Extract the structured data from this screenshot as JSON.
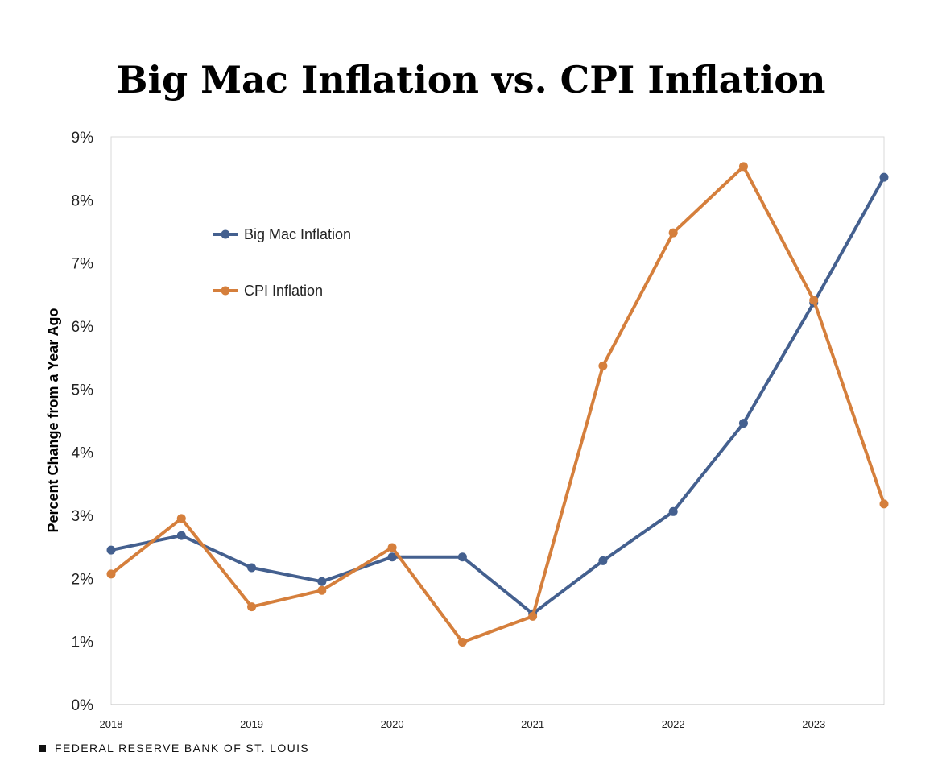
{
  "chart_data": {
    "type": "line",
    "title": "Big Mac Inflation vs. CPI Inflation",
    "ylabel": "Percent Change from a Year Ago",
    "xlabel": "",
    "x": [
      2018,
      2018.5,
      2019,
      2019.5,
      2020,
      2020.5,
      2021,
      2021.5,
      2022,
      2022.5,
      2023,
      2023.5
    ],
    "xticks": [
      "2018",
      "2019",
      "2020",
      "2021",
      "2022",
      "2023"
    ],
    "xtick_values": [
      2018,
      2019,
      2020,
      2021,
      2022,
      2023
    ],
    "xlim": [
      2018,
      2023.5
    ],
    "yticks": [
      "0%",
      "1%",
      "2%",
      "3%",
      "4%",
      "5%",
      "6%",
      "7%",
      "8%",
      "9%"
    ],
    "ylim": [
      0,
      9
    ],
    "grid": "none",
    "legend_position": "upper-left",
    "series": [
      {
        "name": "Big Mac Inflation",
        "color": "#44608f",
        "values": [
          2.45,
          2.68,
          2.17,
          1.95,
          2.34,
          2.34,
          1.44,
          2.28,
          3.06,
          4.46,
          6.37,
          8.36
        ]
      },
      {
        "name": "CPI Inflation",
        "color": "#d57f3c",
        "values": [
          2.07,
          2.95,
          1.55,
          1.81,
          2.49,
          0.99,
          1.4,
          5.37,
          7.48,
          8.53,
          6.41,
          3.18
        ]
      }
    ]
  },
  "source": "FEDERAL RESERVE BANK OF ST. LOUIS"
}
